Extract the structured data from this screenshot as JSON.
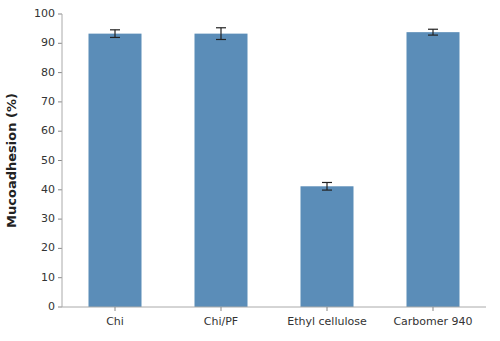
{
  "chart_data": {
    "type": "bar",
    "categories": [
      "Chi",
      "Chi/PF",
      "Ethyl cellulose",
      "Carbomer 940"
    ],
    "values": [
      93.3,
      93.3,
      41.2,
      93.8
    ],
    "errors": [
      1.3,
      2.0,
      1.3,
      1.0
    ],
    "color": "#5b8db8",
    "ylabel": "Mucoadhesion (%)",
    "ylim": [
      0,
      100
    ],
    "yticks": [
      0,
      10,
      20,
      30,
      40,
      50,
      60,
      70,
      80,
      90,
      100
    ]
  }
}
